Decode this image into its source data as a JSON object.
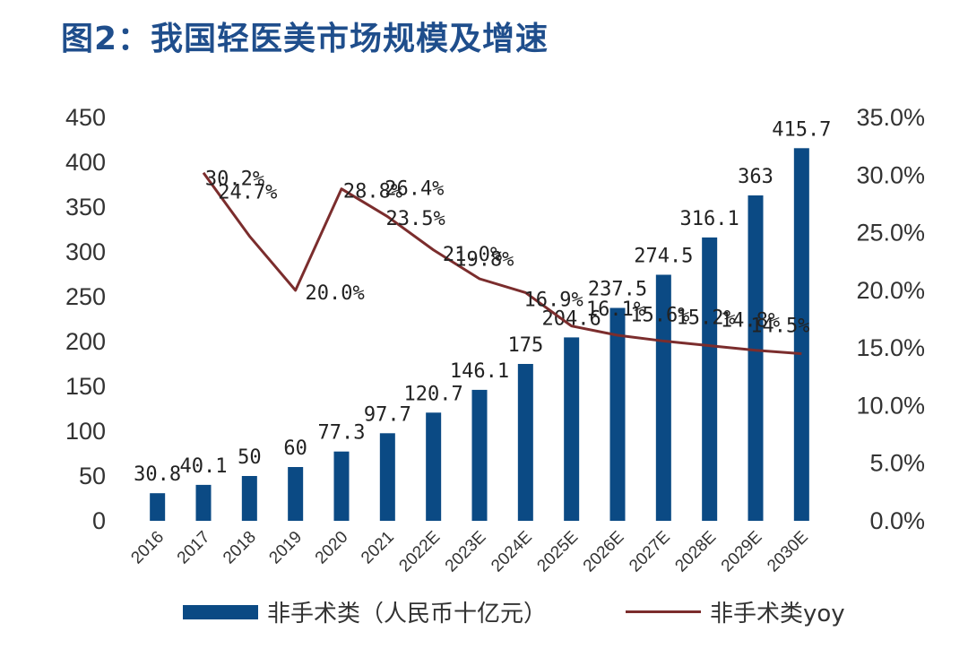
{
  "title": "图2：我国轻医美市场规模及增速",
  "chart_data": {
    "type": "bar",
    "categories": [
      "2016",
      "2017",
      "2018",
      "2019",
      "2020",
      "2021",
      "2022E",
      "2023E",
      "2024E",
      "2025E",
      "2026E",
      "2027E",
      "2028E",
      "2029E",
      "2030E"
    ],
    "series": [
      {
        "name": "非手术类（人民币十亿元）",
        "type": "bar",
        "axis": "left",
        "color": "#0b4a84",
        "values": [
          30.8,
          40.1,
          50,
          60,
          77.3,
          97.7,
          120.7,
          146.1,
          175,
          204.6,
          237.5,
          274.5,
          316.1,
          363,
          415.7
        ],
        "labels": [
          "30.8",
          "40.1",
          "50",
          "60",
          "77.3",
          "97.7",
          "120.7",
          "146.1",
          "175",
          "204.6",
          "237.5",
          "274.5",
          "316.1",
          "363",
          "415.7"
        ]
      },
      {
        "name": "非手术类yoy",
        "type": "line",
        "axis": "right",
        "color": "#7b2d2d",
        "values": [
          null,
          30.2,
          24.7,
          20.0,
          28.8,
          26.4,
          23.5,
          21.0,
          19.8,
          16.9,
          16.1,
          15.6,
          15.2,
          14.8,
          14.5
        ],
        "labels": [
          "",
          "30.2%",
          "24.7%",
          "20.0%",
          "28.8%",
          "26.4%",
          "23.5%",
          "21.0%",
          "19.8%",
          "16.9%",
          "16.1%",
          "15.6%",
          "15.2%",
          "14.8%",
          "14.5%"
        ]
      }
    ],
    "left_axis": {
      "ylim": [
        0,
        450
      ],
      "ticks": [
        "0",
        "50",
        "100",
        "150",
        "200",
        "250",
        "300",
        "350",
        "400",
        "450"
      ]
    },
    "right_axis": {
      "ylim": [
        0,
        35
      ],
      "ticks": [
        "0.0%",
        "5.0%",
        "10.0%",
        "15.0%",
        "20.0%",
        "25.0%",
        "30.0%",
        "35.0%"
      ]
    },
    "legend_position": "bottom",
    "grid": false
  }
}
